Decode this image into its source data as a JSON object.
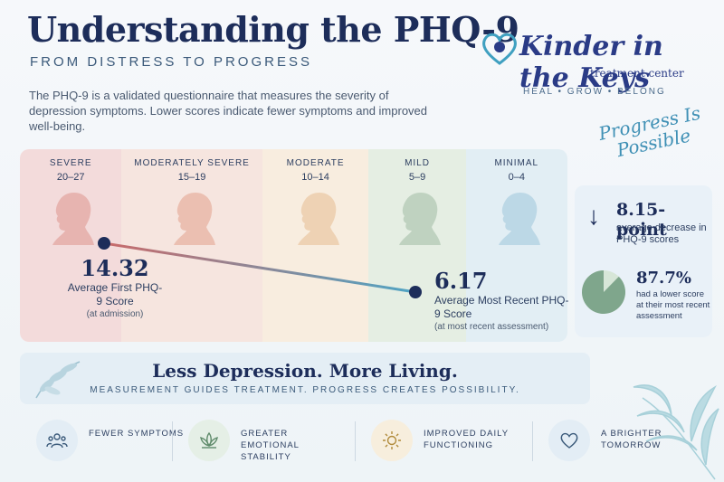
{
  "header": {
    "title": "Understanding the PHQ-9",
    "subtitle": "FROM DISTRESS TO PROGRESS",
    "intro": "The PHQ-9 is a validated questionnaire that measures the severity of depression symptoms. Lower scores indicate fewer symptoms and improved well-being."
  },
  "logo": {
    "name": "Kinder in the Keys",
    "tagline": "treatment center",
    "motto": "HEAL • GROW • BELONG",
    "script": "Progress Is Possible"
  },
  "bands": [
    {
      "name": "SEVERE",
      "range": "20–27",
      "color": "#e7b4b0"
    },
    {
      "name": "MODERATELY SEVERE",
      "range": "15–19",
      "color": "#ebbfb1"
    },
    {
      "name": "MODERATE",
      "range": "10–14",
      "color": "#eed2b4"
    },
    {
      "name": "MILD",
      "range": "5–9",
      "color": "#bfd2c0"
    },
    {
      "name": "MINIMAL",
      "range": "0–4",
      "color": "#bcd8e6"
    }
  ],
  "scores": {
    "first_value": "14.32",
    "first_label": "Average First PHQ-9 Score",
    "first_sub": "(at admission)",
    "recent_value": "6.17",
    "recent_label": "Average Most Recent PHQ-9 Score",
    "recent_sub": "(at most recent assessment)"
  },
  "summary": {
    "decrease_value": "8.15-point",
    "decrease_label": "average decrease in PHQ-9 scores",
    "lower_value": "87.7%",
    "lower_fraction": 0.877,
    "lower_label": "had a lower score at their most recent assessment"
  },
  "banner": {
    "title": "Less Depression. More Living.",
    "subtitle": "MEASUREMENT GUIDES TREATMENT. PROGRESS CREATES POSSIBILITY."
  },
  "benefits": [
    {
      "label": "FEWER SYMPTOMS",
      "icon": "people-icon",
      "bg": "#e3edf5"
    },
    {
      "label": "GREATER EMOTIONAL STABILITY",
      "icon": "lotus-icon",
      "bg": "#e5efe6"
    },
    {
      "label": "IMPROVED DAILY FUNCTIONING",
      "icon": "sun-icon",
      "bg": "#f7eedd"
    },
    {
      "label": "A BRIGHTER TOMORROW",
      "icon": "heart-icon",
      "bg": "#e3edf5"
    }
  ],
  "colors": {
    "navy": "#1d2d5a",
    "trend_start": "#c96a6a",
    "trend_end": "#4fa4c4",
    "pie_main": "#7fa68c",
    "pie_rest": "#d7e6d8"
  }
}
